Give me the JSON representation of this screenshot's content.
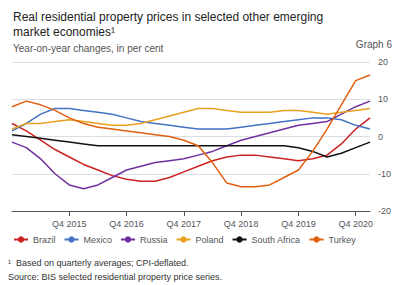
{
  "chart_data": {
    "type": "line",
    "title": "Real residential property prices in selected other emerging\nmarket economies¹",
    "subtitle": "Year-on-year changes, in per cent",
    "annotations": [
      "Graph 6",
      "¹  Based on quarterly averages; CPI-deflated.",
      "Source: BIS selected residential property price series."
    ],
    "x": [
      2014.75,
      2015.0,
      2015.25,
      2015.5,
      2015.75,
      2016.0,
      2016.25,
      2016.5,
      2016.75,
      2017.0,
      2017.25,
      2017.5,
      2017.75,
      2018.0,
      2018.25,
      2018.5,
      2018.75,
      2019.0,
      2019.25,
      2019.5,
      2019.75,
      2020.0,
      2020.25,
      2020.5,
      2020.75,
      2021.0
    ],
    "xlim": [
      2014.75,
      2021.0
    ],
    "xticks": [
      {
        "value": 2015.75,
        "label": "Q4 2015"
      },
      {
        "value": 2016.75,
        "label": "Q4 2016"
      },
      {
        "value": 2017.75,
        "label": "Q4 2017"
      },
      {
        "value": 2018.75,
        "label": "Q4 2018"
      },
      {
        "value": 2019.75,
        "label": "Q4 2019"
      },
      {
        "value": 2020.75,
        "label": "Q4 2020"
      }
    ],
    "ylim": [
      -20,
      20
    ],
    "yticks": [
      -20,
      -10,
      0,
      10,
      20
    ],
    "grid": true,
    "legend": "bottom",
    "series": [
      {
        "name": "Brazil",
        "color": "#cc2222",
        "values": [
          3.5,
          1.5,
          -1.0,
          -3.5,
          -5.5,
          -7.5,
          -9.0,
          -10.5,
          -11.5,
          -12.0,
          -12.0,
          -11.0,
          -9.5,
          -8.0,
          -6.5,
          -5.5,
          -5.0,
          -5.0,
          -5.5,
          -6.0,
          -6.5,
          -6.0,
          -5.0,
          -2.0,
          2.0,
          5.0
        ]
      },
      {
        "name": "Mexico",
        "color": "#4472c4",
        "values": [
          1.5,
          3.5,
          6.0,
          7.5,
          7.5,
          7.0,
          6.5,
          6.0,
          5.0,
          4.0,
          3.5,
          3.0,
          2.5,
          2.0,
          2.0,
          2.0,
          2.5,
          3.0,
          3.5,
          4.0,
          4.5,
          5.0,
          5.0,
          4.5,
          3.0,
          2.0
        ]
      },
      {
        "name": "Russia",
        "color": "#7030a0",
        "values": [
          -1.5,
          -3.0,
          -6.0,
          -10.0,
          -13.0,
          -14.0,
          -13.0,
          -11.0,
          -9.0,
          -8.0,
          -7.0,
          -6.5,
          -6.0,
          -5.0,
          -4.0,
          -2.5,
          -1.0,
          0.0,
          1.0,
          2.0,
          3.0,
          3.5,
          4.0,
          6.0,
          8.0,
          9.5
        ]
      },
      {
        "name": "Poland",
        "color": "#e8a020",
        "values": [
          2.0,
          3.5,
          3.5,
          4.0,
          4.5,
          4.0,
          3.5,
          3.0,
          3.0,
          3.5,
          4.5,
          5.5,
          6.5,
          7.5,
          7.5,
          7.0,
          6.5,
          6.5,
          6.5,
          7.0,
          7.0,
          6.5,
          6.0,
          6.5,
          7.0,
          7.5
        ]
      },
      {
        "name": "South Africa",
        "color": "#111111",
        "values": [
          0.5,
          0.0,
          -0.5,
          -1.0,
          -1.5,
          -2.0,
          -2.5,
          -2.5,
          -2.5,
          -2.5,
          -2.5,
          -2.5,
          -2.5,
          -2.5,
          -2.5,
          -2.5,
          -2.5,
          -2.5,
          -2.5,
          -2.5,
          -3.0,
          -4.0,
          -5.5,
          -4.5,
          -3.0,
          -1.5
        ]
      },
      {
        "name": "Turkey",
        "color": "#e06010",
        "values": [
          8.0,
          9.5,
          8.5,
          7.0,
          5.0,
          3.5,
          2.5,
          2.0,
          1.5,
          1.0,
          0.5,
          0.0,
          -1.0,
          -2.5,
          -7.0,
          -12.5,
          -13.5,
          -13.5,
          -13.0,
          -11.0,
          -9.0,
          -4.0,
          2.0,
          8.5,
          15.0,
          16.5
        ]
      }
    ]
  }
}
